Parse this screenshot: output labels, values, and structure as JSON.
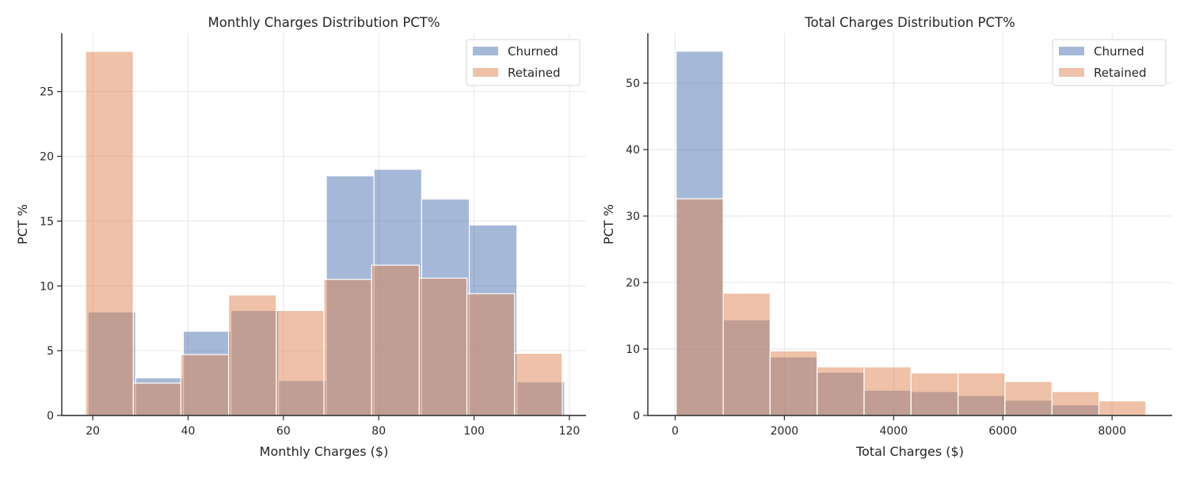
{
  "colors": {
    "churned": "#4c72b0",
    "retained": "#dd8452",
    "opacity": 0.5
  },
  "chart_data": [
    {
      "type": "bar",
      "title": "Monthly Charges Distribution PCT%",
      "xlabel": "Monthly Charges ($)",
      "ylabel": "PCT %",
      "xlim": [
        13.5,
        123.5
      ],
      "ylim": [
        0,
        29.5
      ],
      "xticks": [
        20,
        40,
        60,
        80,
        100,
        120
      ],
      "yticks": [
        0,
        5,
        10,
        15,
        20,
        25
      ],
      "grid": true,
      "legend": "top-right",
      "series": [
        {
          "name": "Churned",
          "color_key": "churned",
          "bins": [
            [
              19,
              29
            ],
            [
              29,
              39
            ],
            [
              39,
              49
            ],
            [
              49,
              59
            ],
            [
              59,
              69
            ],
            [
              69,
              79
            ],
            [
              79,
              89
            ],
            [
              89,
              99
            ],
            [
              99,
              109
            ],
            [
              109,
              119
            ]
          ],
          "values": [
            8.0,
            2.9,
            6.5,
            8.1,
            2.7,
            18.5,
            19.0,
            16.7,
            14.7,
            2.6
          ]
        },
        {
          "name": "Retained",
          "color_key": "retained",
          "bins": [
            [
              18.5,
              28.5
            ],
            [
              28.5,
              38.5
            ],
            [
              38.5,
              48.5
            ],
            [
              48.5,
              58.5
            ],
            [
              58.5,
              68.5
            ],
            [
              68.5,
              78.5
            ],
            [
              78.5,
              88.5
            ],
            [
              88.5,
              98.5
            ],
            [
              98.5,
              108.5
            ],
            [
              108.5,
              118.5
            ]
          ],
          "values": [
            28.1,
            2.5,
            4.7,
            9.3,
            8.1,
            10.5,
            11.6,
            10.6,
            9.4,
            4.8
          ]
        }
      ]
    },
    {
      "type": "bar",
      "title": "Total Charges Distribution PCT%",
      "xlabel": "Total Charges ($)",
      "ylabel": "PCT %",
      "xlim": [
        -500,
        9100
      ],
      "ylim": [
        0,
        57.5
      ],
      "xticks": [
        0,
        2000,
        4000,
        6000,
        8000
      ],
      "yticks": [
        0,
        10,
        20,
        30,
        40,
        50
      ],
      "grid": true,
      "legend": "top-right",
      "series": [
        {
          "name": "Churned",
          "color_key": "churned",
          "bins": [
            [
              19,
              879
            ],
            [
              879,
              1739
            ],
            [
              1739,
              2599
            ],
            [
              2599,
              3459
            ],
            [
              3459,
              4319
            ],
            [
              4319,
              5179
            ],
            [
              5179,
              6039
            ],
            [
              6039,
              6899
            ],
            [
              6899,
              7759
            ]
          ],
          "values": [
            54.8,
            14.4,
            8.8,
            6.5,
            3.8,
            3.6,
            3.0,
            2.3,
            1.6
          ]
        },
        {
          "name": "Retained",
          "color_key": "retained",
          "bins": [
            [
              19,
              879
            ],
            [
              879,
              1739
            ],
            [
              1739,
              2599
            ],
            [
              2599,
              3459
            ],
            [
              3459,
              4319
            ],
            [
              4319,
              5179
            ],
            [
              5179,
              6039
            ],
            [
              6039,
              6899
            ],
            [
              6899,
              7759
            ],
            [
              7759,
              8619
            ]
          ],
          "values": [
            32.6,
            18.4,
            9.7,
            7.3,
            7.3,
            6.4,
            6.4,
            5.1,
            3.6,
            2.2
          ]
        }
      ]
    }
  ]
}
